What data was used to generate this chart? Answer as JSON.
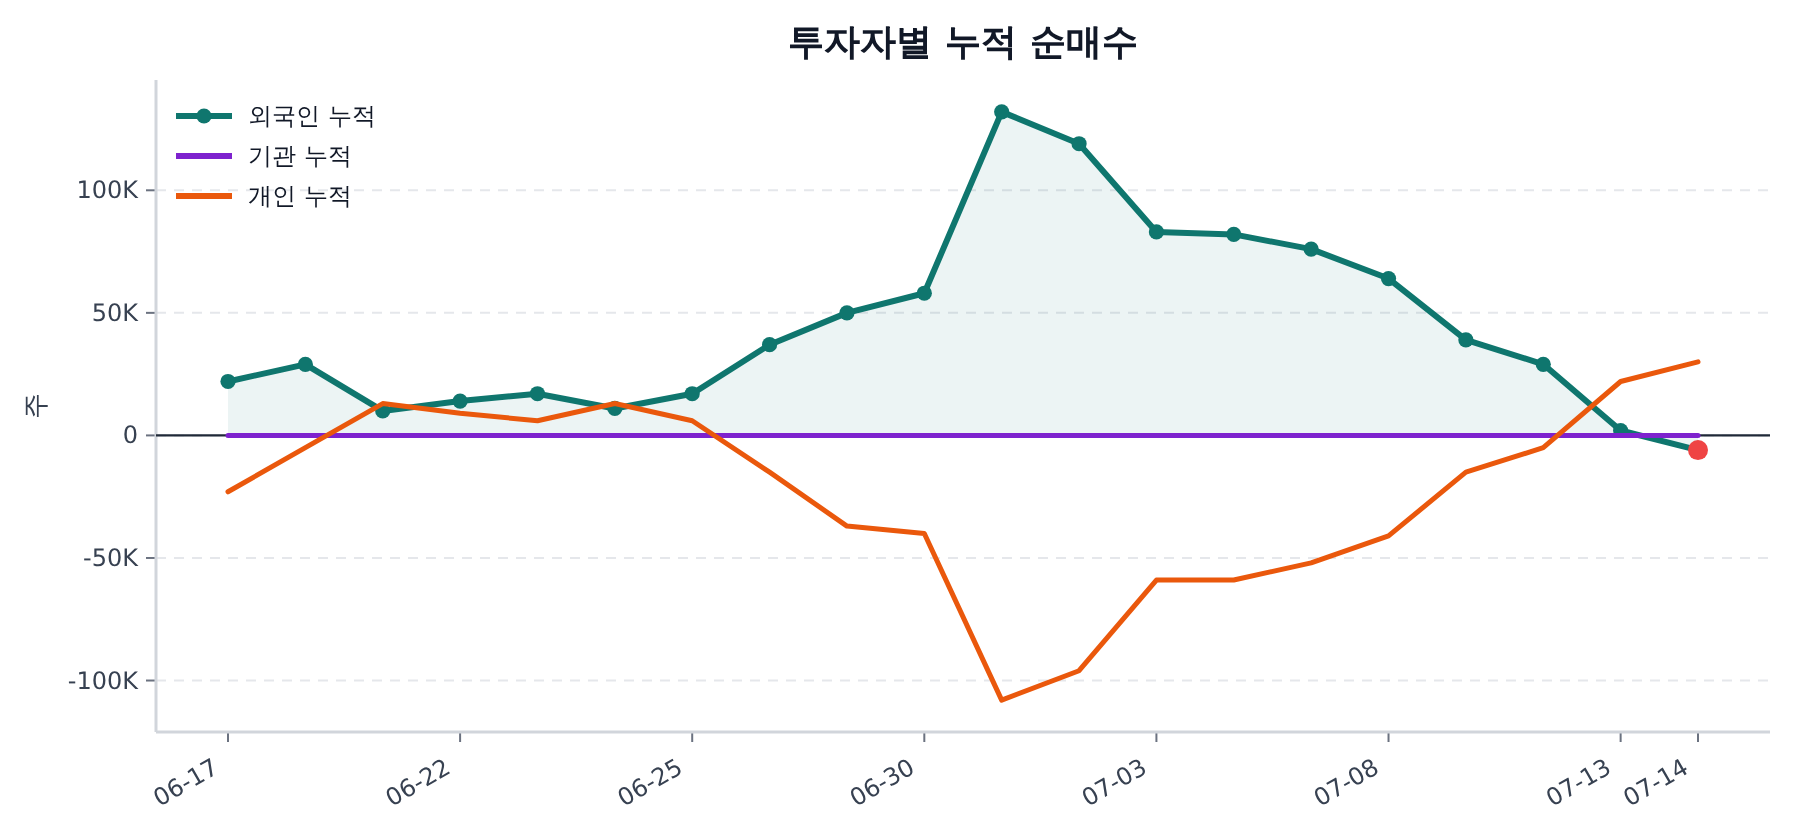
{
  "chart_data": {
    "type": "line",
    "title": "투자자별 누적 순매수",
    "ylabel": "주",
    "categories": [
      "06-17",
      null,
      null,
      "06-22",
      null,
      null,
      "06-25",
      null,
      null,
      "06-30",
      null,
      null,
      "07-03",
      null,
      null,
      "07-08",
      null,
      null,
      "07-13",
      "07-14"
    ],
    "series": [
      {
        "name": "외국인 누적",
        "type": "area",
        "color": "#0f766e",
        "marker": "circle",
        "values": [
          22000,
          29000,
          10000,
          14000,
          17000,
          11000,
          17000,
          37000,
          50000,
          58000,
          132000,
          119000,
          83000,
          82000,
          76000,
          64000,
          39000,
          29000,
          2000,
          -6000
        ]
      },
      {
        "name": "기관 누적",
        "type": "line",
        "color": "#7e22ce",
        "marker": "none",
        "values": [
          0,
          0,
          0,
          0,
          0,
          0,
          0,
          0,
          0,
          0,
          0,
          0,
          0,
          0,
          0,
          0,
          0,
          0,
          0,
          0
        ]
      },
      {
        "name": "개인 누적",
        "type": "line",
        "color": "#ea580c",
        "marker": "none",
        "values": [
          -23000,
          -5000,
          13000,
          9000,
          6000,
          13000,
          6000,
          -15000,
          -37000,
          -40000,
          -108000,
          -96000,
          -59000,
          -59000,
          -52000,
          -41000,
          -15000,
          -5000,
          22000,
          30000
        ]
      },
      {
        "type": "scatter",
        "color": "#ef4444",
        "marker": "circle",
        "values": [
          null,
          null,
          null,
          null,
          null,
          null,
          null,
          null,
          null,
          null,
          null,
          null,
          null,
          null,
          null,
          null,
          null,
          null,
          null,
          -6000
        ]
      }
    ],
    "ylim": [
      -121000,
      145000
    ],
    "yticks": [
      {
        "value": -100000,
        "label": "-100K"
      },
      {
        "value": -50000,
        "label": "-50K"
      },
      0,
      {
        "value": 50000,
        "label": "50K"
      },
      {
        "value": 100000,
        "label": "100K"
      }
    ],
    "ref_lines": [
      {
        "axis": "y",
        "value": 0,
        "color": "#1f2937",
        "line_style": "solid"
      }
    ],
    "grid": "y",
    "legend": "top left"
  }
}
